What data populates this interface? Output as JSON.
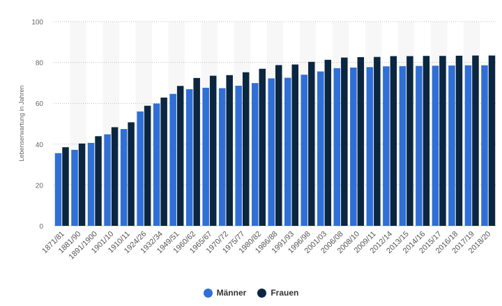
{
  "chart_data": {
    "type": "bar",
    "ylabel": "Lebenserwartung in Jahren",
    "ylim": [
      0,
      100
    ],
    "yticks": [
      0,
      20,
      40,
      60,
      80,
      100
    ],
    "grid": true,
    "legend_position": "bottom-center",
    "categories": [
      "1871/81",
      "1881/90",
      "1891/1900",
      "1901/10",
      "1910/11",
      "1924/26",
      "1932/34",
      "1949/51",
      "1960/62",
      "1965/67",
      "1970/72",
      "1975/77",
      "1980/82",
      "1986/88",
      "1991/93",
      "1996/98",
      "2001/03",
      "2006/08",
      "2008/10",
      "2009/11",
      "2012/14",
      "2013/15",
      "2014/16",
      "2015/17",
      "2016/18",
      "2017/19",
      "2018/20"
    ],
    "series": [
      {
        "name": "Männer",
        "color": "#2f6fd6",
        "values": [
          35.6,
          37.2,
          40.6,
          44.8,
          47.4,
          56.0,
          59.9,
          64.6,
          66.9,
          67.6,
          67.4,
          68.6,
          69.9,
          72.2,
          72.5,
          74.0,
          75.6,
          77.2,
          77.5,
          77.7,
          78.1,
          78.2,
          78.3,
          78.4,
          78.5,
          78.6,
          78.6
        ]
      },
      {
        "name": "Frauen",
        "color": "#0b2640",
        "values": [
          38.5,
          40.3,
          43.9,
          48.3,
          50.7,
          58.8,
          62.8,
          68.5,
          72.4,
          73.5,
          73.8,
          75.2,
          76.9,
          78.7,
          79.0,
          80.3,
          81.3,
          82.4,
          82.6,
          82.7,
          83.1,
          83.1,
          83.2,
          83.2,
          83.3,
          83.4,
          83.4
        ]
      }
    ]
  }
}
